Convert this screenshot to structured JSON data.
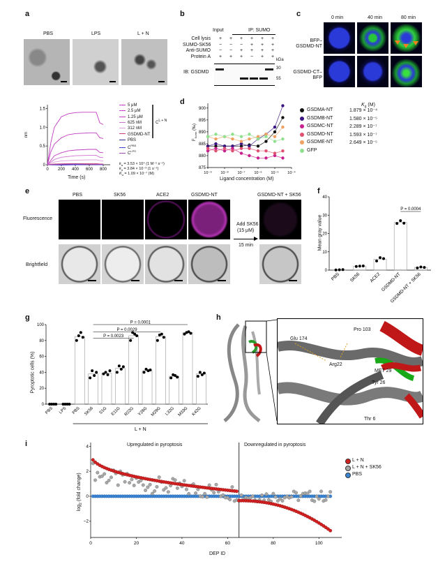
{
  "panels": {
    "a": {
      "label": "a",
      "images": [
        "PBS",
        "LPS",
        "L + N"
      ],
      "chart": {
        "ylabel": "nm",
        "xlabel": "Time (s)",
        "yticks": [
          "0",
          "0.5",
          "1.0",
          "1.5"
        ],
        "xticks": [
          "0",
          "200",
          "400",
          "600",
          "800"
        ],
        "legend": [
          "5 μM",
          "2.5 μM",
          "1.25 μM",
          "625 nM",
          "312 nM",
          "GSDMD-NT",
          "PBS",
          "C",
          "C"
        ],
        "legend_sup": [
          "",
          "",
          "",
          "",
          "",
          "",
          "",
          "PBS",
          "LPS"
        ],
        "brace_label": "C",
        "brace_sup": "L + N",
        "kinetics": [
          "k = 3.53 × 10⁴ (1 M⁻¹ s⁻¹)",
          "k = 3.84 × 10⁻³ (1 s⁻¹)",
          "K = 1.09 × 10⁻⁷ (M)"
        ],
        "kinetics_prefix": [
          "k",
          "k",
          "K"
        ],
        "kinetics_sub": [
          "a",
          "d",
          "d"
        ],
        "kinetics_rest": [
          " = 3.53 × 10⁴ (1 M⁻¹ s⁻¹)",
          " = 3.84 × 10⁻³ (1 s⁻¹)",
          " = 1.09 × 10⁻⁷ (M)"
        ],
        "colors": [
          "#c03cc0",
          "#c03cc0",
          "#c03cc0",
          "#d070d0",
          "#e0a0e0",
          "#c83c78",
          "#2a2a8a",
          "#4040d0",
          "#9a4ab0"
        ]
      }
    },
    "b": {
      "label": "b",
      "headers": [
        "Input",
        "IP: SUMO"
      ],
      "rows": [
        {
          "label": "Cell lysis",
          "marks": [
            "+",
            "+",
            "+",
            "+",
            "+",
            "+"
          ]
        },
        {
          "label": "SUMO-SK56",
          "marks": [
            "−",
            "−",
            "−",
            "+",
            "+",
            "+"
          ]
        },
        {
          "label": "Anti-SUMO",
          "marks": [
            "−",
            "−",
            "+",
            "+",
            "+",
            "+"
          ]
        },
        {
          "label": "Protein A",
          "marks": [
            "+",
            "+",
            "+",
            "−",
            "+",
            "+"
          ]
        }
      ],
      "kda": "kDa",
      "ib": "IB: GSDMD",
      "mw": [
        "30",
        "55"
      ]
    },
    "c": {
      "label": "c",
      "times": [
        "0 min",
        "40 min",
        "80 min"
      ],
      "rows": [
        "BFP–GSDMD-NT",
        "GSDMD-CT–BFP"
      ]
    },
    "d": {
      "label": "d",
      "ylabel": "F (‰)",
      "ylabel_main": "F",
      "ylabel_sub": "Norm",
      "ylabel_unit": " (‰)",
      "xlabel": "Ligand concentration (M)",
      "yticks": [
        "875",
        "880",
        "885",
        "890",
        "895",
        "900"
      ],
      "xticks": [
        "10⁻⁹",
        "10⁻⁸",
        "10⁻⁷",
        "10⁻⁶",
        "10⁻⁵",
        "10⁻⁴"
      ],
      "kd_header": "K (M)",
      "kd_header_main": "K",
      "kd_header_sub": "d",
      "kd_header_unit": "(M)",
      "legend": [
        {
          "name": "GSDMA-NT",
          "kd": "1.879 × 10⁻⁴",
          "color": "#111111"
        },
        {
          "name": "GSDMB-NT",
          "kd": "1.580 × 10⁻⁵",
          "color": "#3a1480"
        },
        {
          "name": "GSDMC-NT",
          "kd": "2.289 × 10⁻⁷",
          "color": "#c8208c"
        },
        {
          "name": "GSDMD-NT",
          "kd": "1.593 × 10⁻⁷",
          "color": "#e05070"
        },
        {
          "name": "GSDME-NT",
          "kd": "2.649 × 10⁻⁵",
          "color": "#f0a060"
        },
        {
          "name": "GFP",
          "kd": "",
          "color": "#90e090"
        }
      ]
    },
    "e": {
      "label": "e",
      "cols": [
        "PBS",
        "SK56",
        "ACE2",
        "GSDMD-NT"
      ],
      "arrow_col": "GSDMD-NT + SK56",
      "rows": [
        "Fluorescence",
        "Brightfield"
      ],
      "add": "Add SK56",
      "conc": "(15 μM)",
      "time": "15 min"
    },
    "f": {
      "label": "f",
      "ylabel": "Mean gray value",
      "yticks": [
        "0",
        "10",
        "20",
        "30",
        "40"
      ],
      "categories": [
        "PBS",
        "SK56",
        "ACE2",
        "GSDMD-NT",
        "GSDMD-NT + SK56"
      ],
      "pvalue": "P = 0.0004"
    },
    "g": {
      "label": "g",
      "ylabel": "Pyroptotic cells (%)",
      "yticks": [
        "0",
        "20",
        "40",
        "60",
        "80",
        "100"
      ],
      "categories": [
        "PBS",
        "LPS",
        "PBS",
        "SK56",
        "S1G",
        "E11G",
        "R22G",
        "Y26G",
        "M29G",
        "L32G",
        "M33G",
        "K42G"
      ],
      "group": "L + N",
      "pvalues": [
        "P = 0.0001",
        "P = 0.0029",
        "P = 0.0023"
      ]
    },
    "h": {
      "label": "h",
      "residues": [
        "Pro 103",
        "Glu 174",
        "Arg22",
        "MET 29",
        "Tyr 26",
        "Thr 6"
      ]
    },
    "i": {
      "label": "i",
      "ylabel": "log (fold change)",
      "ylabel_main": "log",
      "ylabel_sub": "2",
      "ylabel_rest": " (fold change)",
      "xlabel": "DEP ID",
      "yticks": [
        "−2",
        "0",
        "2",
        "4"
      ],
      "xticks": [
        "0",
        "20",
        "40",
        "60",
        "80",
        "100"
      ],
      "up_text": "Upregulated in pyroptosis",
      "down_text": "Downregulated in pyroptosis",
      "legend": [
        {
          "name": "L + N",
          "color": "#d42020"
        },
        {
          "name": "L + N + SK56",
          "color": "#a8a8a8"
        },
        {
          "name": "PBS",
          "color": "#3a86d4"
        }
      ]
    }
  },
  "chart_data": [
    {
      "type": "line",
      "title": "",
      "xlabel": "Time (s)",
      "ylabel": "nm",
      "xlim": [
        0,
        900
      ],
      "ylim": [
        0,
        1.6
      ],
      "series": [
        {
          "name": "5 μM",
          "x": [
            0,
            50,
            100,
            200,
            300,
            400,
            500,
            600,
            700,
            750,
            800
          ],
          "y": [
            0,
            0.6,
            1.0,
            1.28,
            1.36,
            1.39,
            1.4,
            1.4,
            1.4,
            1.12,
            1.07
          ]
        },
        {
          "name": "2.5 μM",
          "x": [
            0,
            50,
            100,
            200,
            300,
            400,
            500,
            600,
            700,
            750,
            800
          ],
          "y": [
            0,
            0.35,
            0.55,
            0.72,
            0.8,
            0.83,
            0.84,
            0.85,
            0.85,
            0.72,
            0.7
          ]
        },
        {
          "name": "1.25 μM",
          "x": [
            0,
            100,
            200,
            300,
            400,
            500,
            600,
            700,
            750,
            800
          ],
          "y": [
            0,
            0.24,
            0.32,
            0.37,
            0.39,
            0.4,
            0.41,
            0.41,
            0.33,
            0.32
          ]
        },
        {
          "name": "625 nM",
          "x": [
            0,
            100,
            200,
            400,
            600,
            700,
            750,
            800
          ],
          "y": [
            0,
            0.14,
            0.2,
            0.24,
            0.25,
            0.25,
            0.2,
            0.19
          ]
        },
        {
          "name": "312 nM",
          "x": [
            0,
            100,
            200,
            400,
            600,
            700,
            750,
            800
          ],
          "y": [
            0,
            0.07,
            0.1,
            0.12,
            0.13,
            0.13,
            0.11,
            0.1
          ]
        },
        {
          "name": "GSDMD-NT",
          "x": [
            0,
            100,
            300,
            500,
            700,
            750,
            800
          ],
          "y": [
            0,
            0.02,
            0.03,
            0.03,
            0.03,
            0.02,
            0.02
          ]
        },
        {
          "name": "PBS",
          "x": [
            0,
            200,
            400,
            600,
            800
          ],
          "y": [
            0,
            0,
            0,
            0,
            0
          ]
        },
        {
          "name": "C PBS",
          "x": [
            0,
            200,
            400,
            600,
            800
          ],
          "y": [
            0,
            -0.01,
            0,
            0.01,
            0
          ]
        },
        {
          "name": "C LPS",
          "x": [
            0,
            200,
            400,
            600,
            800
          ],
          "y": [
            0,
            0.01,
            0.02,
            0.01,
            0.01
          ]
        }
      ]
    },
    {
      "type": "scatter",
      "title": "",
      "xlabel": "Ligand concentration (M)",
      "ylabel": "F Norm (‰)",
      "xscale": "log",
      "ylim": [
        875,
        902
      ],
      "series": [
        {
          "name": "GSDMA-NT",
          "x": [
            1e-09,
            3e-09,
            1e-08,
            3e-08,
            1e-07,
            3e-07,
            1e-06,
            3e-06,
            1e-05,
            3e-05
          ],
          "y": [
            884,
            884,
            884,
            884,
            884,
            884.5,
            884,
            886,
            890,
            896
          ]
        },
        {
          "name": "GSDMB-NT",
          "x": [
            1e-09,
            3e-09,
            1e-08,
            3e-08,
            1e-07,
            3e-07,
            1e-06,
            3e-06,
            1e-05,
            3e-05
          ],
          "y": [
            884,
            885,
            884,
            884,
            885,
            884,
            887,
            889,
            892,
            901
          ]
        },
        {
          "name": "GSDMC-NT",
          "x": [
            1e-09,
            3e-09,
            1e-08,
            3e-08,
            1e-07,
            3e-07,
            1e-06,
            3e-06,
            1e-05,
            3e-05
          ],
          "y": [
            882,
            883,
            882,
            883,
            881,
            880,
            879,
            879,
            880,
            879
          ]
        },
        {
          "name": "GSDMD-NT",
          "x": [
            1e-09,
            3e-09,
            1e-08,
            3e-08,
            1e-07,
            3e-07,
            1e-06,
            3e-06,
            1e-05,
            3e-05
          ],
          "y": [
            883,
            882,
            883,
            882,
            883,
            883,
            882,
            882,
            881,
            882
          ]
        },
        {
          "name": "GSDME-NT",
          "x": [
            1e-09,
            3e-09,
            1e-08,
            3e-08,
            1e-07,
            3e-07,
            1e-06,
            3e-06,
            1e-05,
            3e-05
          ],
          "y": [
            888,
            887,
            888,
            887,
            886,
            887,
            888,
            889,
            888,
            892
          ]
        },
        {
          "name": "GFP",
          "x": [
            1e-09,
            3e-09,
            1e-08,
            3e-08,
            1e-07,
            3e-07,
            1e-06,
            3e-06,
            1e-05,
            3e-05
          ],
          "y": [
            888,
            889,
            888,
            889,
            888,
            889,
            887,
            888,
            886,
            887
          ]
        }
      ]
    },
    {
      "type": "bar",
      "title": "",
      "xlabel": "",
      "ylabel": "Mean gray value",
      "ylim": [
        0,
        40
      ],
      "categories": [
        "PBS",
        "SK56",
        "ACE2",
        "GSDMD-NT",
        "GSDMD-NT + SK56"
      ],
      "values": [
        0.2,
        2.2,
        6.0,
        26.0,
        1.5
      ],
      "points": [
        [
          0.1,
          0.2,
          0.3
        ],
        [
          2.0,
          2.2,
          2.3
        ],
        [
          5.0,
          6.8,
          6.3
        ],
        [
          25.5,
          27.0,
          25.6
        ],
        [
          1.2,
          1.7,
          1.5
        ]
      ]
    },
    {
      "type": "bar",
      "title": "",
      "xlabel": "L + N",
      "ylabel": "Pyroptotic cells (%)",
      "ylim": [
        0,
        100
      ],
      "categories": [
        "PBS",
        "LPS",
        "PBS",
        "SK56",
        "S1G",
        "E11G",
        "R22G",
        "Y26G",
        "M29G",
        "L32G",
        "M33G",
        "K42G"
      ],
      "values": [
        0,
        0,
        85,
        38,
        39,
        45,
        86,
        42,
        85,
        35,
        90,
        38
      ],
      "points": [
        [
          0,
          0,
          0,
          0
        ],
        [
          0,
          0,
          0,
          0
        ],
        [
          80,
          86,
          90,
          84
        ],
        [
          33,
          42,
          36,
          40
        ],
        [
          38,
          40,
          37,
          42
        ],
        [
          40,
          48,
          44,
          47
        ],
        [
          80,
          90,
          88,
          86
        ],
        [
          40,
          44,
          42,
          43
        ],
        [
          80,
          87,
          88,
          84
        ],
        [
          33,
          37,
          36,
          34
        ],
        [
          88,
          90,
          91,
          89
        ],
        [
          35,
          40,
          37,
          39
        ]
      ]
    },
    {
      "type": "scatter",
      "title": "",
      "xlabel": "DEP ID",
      "ylabel": "log2 (fold change)",
      "xlim": [
        0,
        110
      ],
      "ylim": [
        -3.3,
        4.3
      ],
      "series": [
        {
          "name": "L + N",
          "note": "values descend from 3.5 to -2.7 across DEP IDs 1-105"
        },
        {
          "name": "L + N + SK56",
          "note": "scattered around 0"
        },
        {
          "name": "PBS",
          "note": "all at 0"
        }
      ]
    }
  ]
}
